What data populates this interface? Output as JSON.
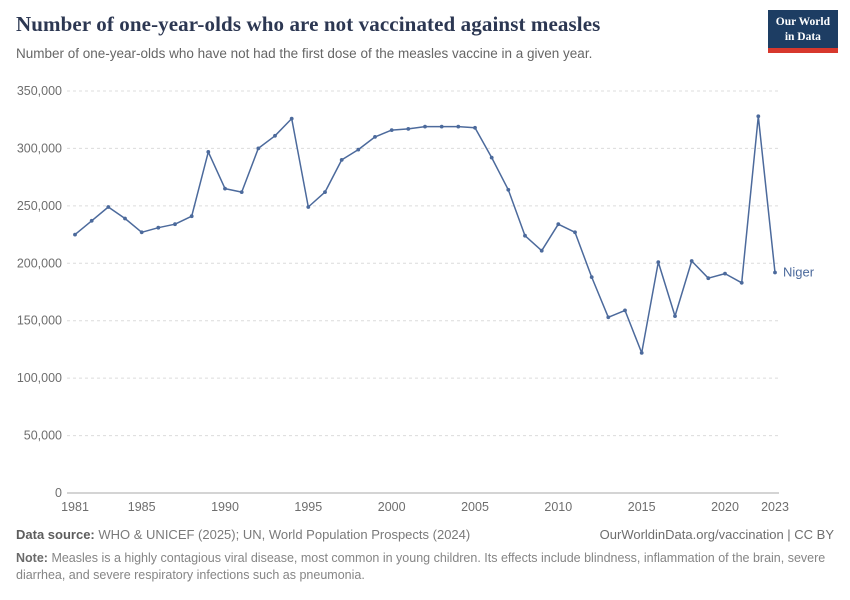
{
  "header": {
    "title": "Number of one-year-olds who are not vaccinated against measles",
    "subtitle": "Number of one-year-olds who have not had the first dose of the measles vaccine in a given year.",
    "logo": {
      "line1": "Our World",
      "line2": "in Data"
    }
  },
  "chart_data": {
    "type": "line",
    "title": "Number of one-year-olds who are not vaccinated against measles",
    "xlabel": "",
    "ylabel": "",
    "xlim": [
      1981,
      2023
    ],
    "ylim": [
      0,
      350000
    ],
    "x_ticks": [
      1981,
      1985,
      1990,
      1995,
      2000,
      2005,
      2010,
      2015,
      2020,
      2023
    ],
    "y_ticks": [
      0,
      50000,
      100000,
      150000,
      200000,
      250000,
      300000,
      350000
    ],
    "grid": "horizontal-dashed",
    "legend": "end-of-line-label",
    "series": [
      {
        "name": "Niger",
        "color": "#4C6A9C",
        "x": [
          1981,
          1982,
          1983,
          1984,
          1985,
          1986,
          1987,
          1988,
          1989,
          1990,
          1991,
          1992,
          1993,
          1994,
          1995,
          1996,
          1997,
          1998,
          1999,
          2000,
          2001,
          2002,
          2003,
          2004,
          2005,
          2006,
          2007,
          2008,
          2009,
          2010,
          2011,
          2012,
          2013,
          2014,
          2015,
          2016,
          2017,
          2018,
          2019,
          2020,
          2021,
          2022,
          2023
        ],
        "values": [
          225000,
          237000,
          249000,
          239000,
          227000,
          231000,
          234000,
          241000,
          297000,
          265000,
          262000,
          300000,
          311000,
          326000,
          249000,
          262000,
          290000,
          299000,
          310000,
          316000,
          317000,
          319000,
          319000,
          319000,
          318000,
          292000,
          264000,
          224000,
          211000,
          234000,
          227000,
          188000,
          153000,
          159000,
          122000,
          201000,
          154000,
          202000,
          187000,
          191000,
          183000,
          328000,
          192000
        ]
      }
    ]
  },
  "footer": {
    "data_source_label": "Data source:",
    "data_source": "WHO & UNICEF (2025); UN, World Population Prospects (2024)",
    "attribution": "OurWorldinData.org/vaccination | CC BY",
    "note_label": "Note:",
    "note": "Measles is a highly contagious viral disease, most common in young children. Its effects include blindness, inflammation of the brain, severe diarrhea, and severe respiratory infections such as pneumonia."
  },
  "colors": {
    "line": "#4C6A9C",
    "title": "#2c3752",
    "logo_background": "#1d3d63",
    "logo_accent": "#d7382d",
    "grid": "#dcdcdc",
    "axis_text": "#6e6e6e"
  }
}
